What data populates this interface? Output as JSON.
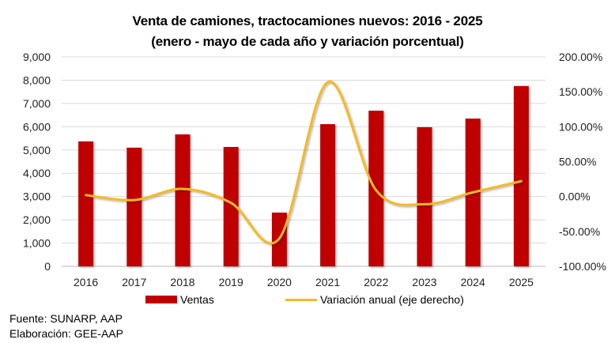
{
  "chart_data": {
    "type": "bar+line",
    "title": "Venta de camiones, tractocamiones nuevos: 2016 - 2025",
    "subtitle": "(enero - mayo de cada año y variación porcentual)",
    "categories": [
      "2016",
      "2017",
      "2018",
      "2019",
      "2020",
      "2021",
      "2022",
      "2023",
      "2024",
      "2025"
    ],
    "series": [
      {
        "name": "Ventas",
        "type": "bar",
        "axis": "left",
        "color": "#C00000",
        "values": [
          5370,
          5100,
          5670,
          5130,
          2310,
          6110,
          6690,
          5980,
          6350,
          7750
        ]
      },
      {
        "name": "Variación anual (eje derecho)",
        "type": "line",
        "axis": "right",
        "color": "#F5B921",
        "smooth": true,
        "values": [
          2,
          -5,
          11,
          -9,
          -60,
          164,
          9,
          -11,
          6,
          22
        ]
      }
    ],
    "left_axis": {
      "min": 0,
      "max": 9000,
      "ticks": [
        "0",
        "1,000",
        "2,000",
        "3,000",
        "4,000",
        "5,000",
        "6,000",
        "7,000",
        "8,000",
        "9,000"
      ]
    },
    "right_axis": {
      "min": -100,
      "max": 200,
      "ticks": [
        "-100.00%",
        "-50.00%",
        "0.00%",
        "50.00%",
        "100.00%",
        "150.00%",
        "200.00%"
      ]
    },
    "grid": true,
    "legend_position": "bottom"
  },
  "legend": {
    "bar_label": "Ventas",
    "line_label": "Variación anual (eje derecho)"
  },
  "notes": {
    "source": "Fuente: SUNARP, AAP",
    "elaboration": "Elaboración: GEE-AAP"
  }
}
